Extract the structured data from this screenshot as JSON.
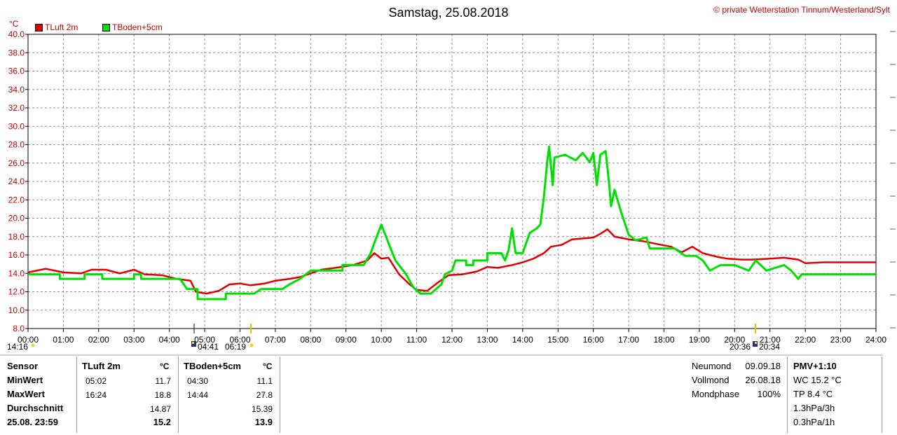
{
  "header": {
    "title": "Samstag, 25.08.2018",
    "copyright": "© private Wetterstation Tinnum/Westerland/Sylt"
  },
  "chart_data": {
    "type": "line",
    "title": "Samstag, 25.08.2018",
    "ylabel": "°C",
    "ylim": [
      8,
      40
    ],
    "yticks": [
      "8.0",
      "10.0",
      "12.0",
      "14.0",
      "16.0",
      "18.0",
      "20.0",
      "22.0",
      "24.0",
      "26.0",
      "28.0",
      "30.0",
      "32.0",
      "34.0",
      "36.0",
      "38.0",
      "40.0"
    ],
    "xlim": [
      0,
      24
    ],
    "xticks": [
      "00:00",
      "01:00",
      "02:00",
      "03:00",
      "04:00",
      "05:00",
      "06:00",
      "07:00",
      "08:00",
      "09:00",
      "10:00",
      "11:00",
      "12:00",
      "13:00",
      "14:00",
      "15:00",
      "16:00",
      "17:00",
      "18:00",
      "19:00",
      "20:00",
      "21:00",
      "22:00",
      "23:00",
      "24:00"
    ],
    "grid": true,
    "legend_position": "top-left",
    "series": [
      {
        "name": "TLuft 2m",
        "color": "#e00000",
        "points": [
          [
            0,
            14.1
          ],
          [
            0.5,
            14.5
          ],
          [
            1,
            14.1
          ],
          [
            1.5,
            14.0
          ],
          [
            1.8,
            14.4
          ],
          [
            2.2,
            14.4
          ],
          [
            2.6,
            14.0
          ],
          [
            3,
            14.4
          ],
          [
            3.3,
            13.9
          ],
          [
            3.8,
            13.8
          ],
          [
            4.2,
            13.4
          ],
          [
            4.6,
            13.2
          ],
          [
            4.75,
            12.0
          ],
          [
            5.05,
            11.8
          ],
          [
            5.4,
            12.1
          ],
          [
            5.7,
            12.8
          ],
          [
            6,
            12.9
          ],
          [
            6.3,
            12.7
          ],
          [
            6.7,
            12.9
          ],
          [
            7,
            13.2
          ],
          [
            7.4,
            13.4
          ],
          [
            7.7,
            13.6
          ],
          [
            8,
            14.0
          ],
          [
            8.3,
            14.4
          ],
          [
            8.7,
            14.6
          ],
          [
            9.2,
            14.9
          ],
          [
            9.6,
            15.4
          ],
          [
            9.8,
            16.2
          ],
          [
            10.0,
            15.6
          ],
          [
            10.2,
            15.7
          ],
          [
            10.5,
            13.9
          ],
          [
            10.8,
            12.8
          ],
          [
            11.0,
            12.2
          ],
          [
            11.3,
            12.1
          ],
          [
            11.6,
            13.0
          ],
          [
            11.9,
            13.8
          ],
          [
            12.3,
            13.9
          ],
          [
            12.7,
            14.2
          ],
          [
            13.0,
            14.7
          ],
          [
            13.3,
            14.6
          ],
          [
            13.7,
            14.9
          ],
          [
            14.0,
            15.2
          ],
          [
            14.3,
            15.6
          ],
          [
            14.6,
            16.2
          ],
          [
            14.8,
            16.9
          ],
          [
            15.1,
            17.1
          ],
          [
            15.4,
            17.7
          ],
          [
            15.7,
            17.8
          ],
          [
            16.0,
            17.9
          ],
          [
            16.2,
            18.3
          ],
          [
            16.4,
            18.8
          ],
          [
            16.6,
            18.0
          ],
          [
            17.0,
            17.7
          ],
          [
            17.4,
            17.5
          ],
          [
            17.8,
            17.2
          ],
          [
            18.2,
            16.9
          ],
          [
            18.5,
            16.3
          ],
          [
            18.8,
            16.9
          ],
          [
            19.1,
            16.2
          ],
          [
            19.5,
            15.8
          ],
          [
            19.8,
            15.6
          ],
          [
            20.2,
            15.5
          ],
          [
            20.5,
            15.5
          ],
          [
            21.0,
            15.6
          ],
          [
            21.4,
            15.7
          ],
          [
            21.8,
            15.5
          ],
          [
            22.0,
            15.1
          ],
          [
            22.5,
            15.2
          ],
          [
            23.0,
            15.2
          ],
          [
            23.5,
            15.2
          ],
          [
            24.0,
            15.2
          ]
        ]
      },
      {
        "name": "TBoden+5cm",
        "color": "#00e000",
        "points": [
          [
            0,
            13.9
          ],
          [
            0.9,
            13.9
          ],
          [
            0.9,
            13.4
          ],
          [
            1.6,
            13.4
          ],
          [
            1.6,
            13.9
          ],
          [
            2.1,
            13.9
          ],
          [
            2.1,
            13.4
          ],
          [
            3.0,
            13.4
          ],
          [
            3.0,
            13.9
          ],
          [
            3.2,
            13.9
          ],
          [
            3.2,
            13.4
          ],
          [
            4.3,
            13.4
          ],
          [
            4.5,
            12.3
          ],
          [
            4.8,
            12.3
          ],
          [
            4.8,
            11.2
          ],
          [
            5.6,
            11.2
          ],
          [
            5.6,
            11.8
          ],
          [
            6.4,
            11.8
          ],
          [
            6.6,
            12.3
          ],
          [
            7.2,
            12.3
          ],
          [
            7.4,
            12.8
          ],
          [
            7.7,
            13.4
          ],
          [
            8.0,
            14.3
          ],
          [
            8.9,
            14.3
          ],
          [
            8.9,
            14.9
          ],
          [
            9.5,
            14.9
          ],
          [
            9.7,
            16.2
          ],
          [
            9.8,
            17.3
          ],
          [
            10.0,
            19.3
          ],
          [
            10.2,
            17.3
          ],
          [
            10.4,
            15.4
          ],
          [
            10.7,
            13.9
          ],
          [
            10.9,
            12.5
          ],
          [
            11.1,
            11.8
          ],
          [
            11.4,
            11.8
          ],
          [
            11.7,
            12.8
          ],
          [
            11.8,
            13.9
          ],
          [
            12.0,
            14.3
          ],
          [
            12.1,
            15.4
          ],
          [
            12.4,
            15.4
          ],
          [
            12.4,
            14.9
          ],
          [
            12.6,
            14.9
          ],
          [
            12.6,
            15.4
          ],
          [
            13.0,
            15.4
          ],
          [
            13.0,
            16.2
          ],
          [
            13.4,
            16.2
          ],
          [
            13.5,
            15.4
          ],
          [
            13.6,
            16.5
          ],
          [
            13.7,
            18.9
          ],
          [
            13.8,
            16.2
          ],
          [
            14.0,
            16.2
          ],
          [
            14.2,
            18.4
          ],
          [
            14.4,
            18.9
          ],
          [
            14.5,
            19.3
          ],
          [
            14.6,
            22.3
          ],
          [
            14.7,
            26.3
          ],
          [
            14.75,
            27.8
          ],
          [
            14.85,
            23.6
          ],
          [
            14.9,
            26.6
          ],
          [
            15.2,
            26.9
          ],
          [
            15.5,
            26.3
          ],
          [
            15.7,
            27.1
          ],
          [
            15.9,
            26.1
          ],
          [
            16.0,
            27.1
          ],
          [
            16.1,
            23.6
          ],
          [
            16.2,
            26.9
          ],
          [
            16.35,
            27.3
          ],
          [
            16.45,
            23.6
          ],
          [
            16.5,
            21.3
          ],
          [
            16.6,
            23.1
          ],
          [
            16.8,
            20.5
          ],
          [
            17.0,
            18.2
          ],
          [
            17.2,
            17.6
          ],
          [
            17.5,
            17.9
          ],
          [
            17.6,
            16.7
          ],
          [
            18.3,
            16.7
          ],
          [
            18.6,
            15.9
          ],
          [
            18.9,
            15.9
          ],
          [
            19.1,
            15.4
          ],
          [
            19.3,
            14.3
          ],
          [
            19.6,
            14.9
          ],
          [
            20.0,
            14.9
          ],
          [
            20.4,
            14.3
          ],
          [
            20.6,
            15.4
          ],
          [
            20.9,
            14.3
          ],
          [
            21.4,
            14.9
          ],
          [
            21.6,
            14.3
          ],
          [
            21.8,
            13.4
          ],
          [
            21.9,
            13.9
          ],
          [
            23.5,
            13.9
          ],
          [
            24.0,
            13.9
          ]
        ]
      }
    ]
  },
  "sun_moon": {
    "left_time": "14:16",
    "sunrise": "04:41",
    "dawn": "06:19",
    "dusk": "20:36",
    "sunset": "20:34"
  },
  "stats": {
    "row_labels": [
      "Sensor",
      "MinWert",
      "MaxWert",
      "Durchschnitt",
      "25.08. 23:59"
    ],
    "tluft": {
      "header": "TLuft 2m",
      "unit": "°C",
      "min_time": "05:02",
      "min": "11.7",
      "max_time": "16:24",
      "max": "18.8",
      "avg": "14.87",
      "current": "15.2"
    },
    "tboden": {
      "header": "TBoden+5cm",
      "unit": "°C",
      "min_time": "04:30",
      "min": "11.1",
      "max_time": "14:44",
      "max": "27.8",
      "avg": "15.39",
      "current": "13.9"
    }
  },
  "moon": {
    "rows": [
      {
        "label": "Neumond",
        "value": "09.09.18"
      },
      {
        "label": "Vollmond",
        "value": "26.08.18"
      },
      {
        "label": "Mondphase",
        "value": "100%"
      }
    ]
  },
  "pmv": {
    "title": "PMV+1:10",
    "lines": [
      "WC 15.2 °C",
      "TP 8.4 °C",
      "1.3hPa/3h",
      "0.3hPa/1h"
    ]
  }
}
